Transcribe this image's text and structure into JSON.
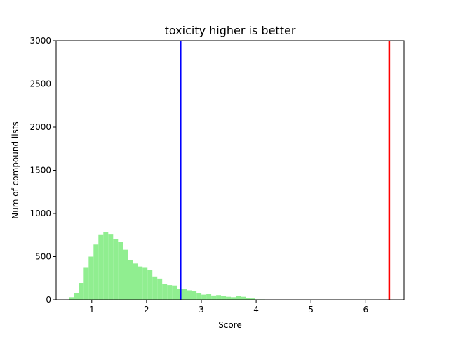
{
  "chart_data": {
    "type": "bar",
    "title": "toxicity higher is better",
    "xlabel": "Score",
    "ylabel": "Num of compound lists",
    "xlim": [
      0.35,
      6.7
    ],
    "ylim": [
      0,
      3000
    ],
    "xticks": [
      1,
      2,
      3,
      4,
      5,
      6
    ],
    "yticks": [
      0,
      500,
      1000,
      1500,
      2000,
      2500,
      3000
    ],
    "bar_color": "#90ee90",
    "histogram": {
      "bin_start": 0.585,
      "bin_width": 0.0895,
      "counts": [
        30,
        80,
        195,
        370,
        500,
        640,
        750,
        785,
        755,
        700,
        670,
        580,
        460,
        420,
        385,
        370,
        345,
        270,
        245,
        180,
        170,
        165,
        130,
        125,
        110,
        100,
        80,
        60,
        65,
        50,
        55,
        45,
        35,
        30,
        45,
        35,
        20,
        15,
        5,
        5
      ]
    },
    "reference_lines": [
      {
        "x": 2.62,
        "color": "#0000ff"
      },
      {
        "x": 6.43,
        "color": "#ff0000"
      }
    ]
  }
}
